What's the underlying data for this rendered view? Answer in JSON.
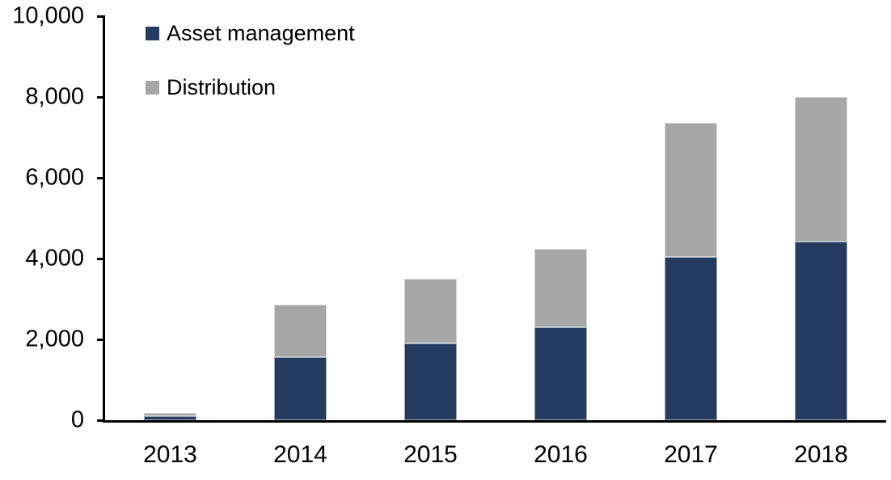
{
  "chart": {
    "background": "#ffffff",
    "axis_color": "#000000",
    "text_color": "#000000"
  },
  "chart_data": {
    "type": "bar",
    "stacked": true,
    "title": "",
    "xlabel": "",
    "ylabel": "",
    "grid": false,
    "legend_position": "top-left",
    "categories": [
      "2013",
      "2014",
      "2015",
      "2016",
      "2017",
      "2018"
    ],
    "series": [
      {
        "name": "Asset management",
        "color": "#243A5F",
        "values": [
          100,
          1560,
          1900,
          2310,
          4050,
          4420
        ]
      },
      {
        "name": "Distribution",
        "color": "#A6A6A6",
        "values": [
          90,
          1300,
          1600,
          1930,
          3320,
          3580
        ]
      }
    ],
    "totals": [
      190,
      2860,
      3500,
      4240,
      7370,
      8000
    ],
    "ylim": [
      0,
      10000
    ],
    "yticks": [
      {
        "value": 0,
        "label": "0"
      },
      {
        "value": 2000,
        "label": "2,000"
      },
      {
        "value": 4000,
        "label": "4,000"
      },
      {
        "value": 6000,
        "label": "6,000"
      },
      {
        "value": 8000,
        "label": "8,000"
      },
      {
        "value": 10000,
        "label": "10,000"
      }
    ]
  }
}
